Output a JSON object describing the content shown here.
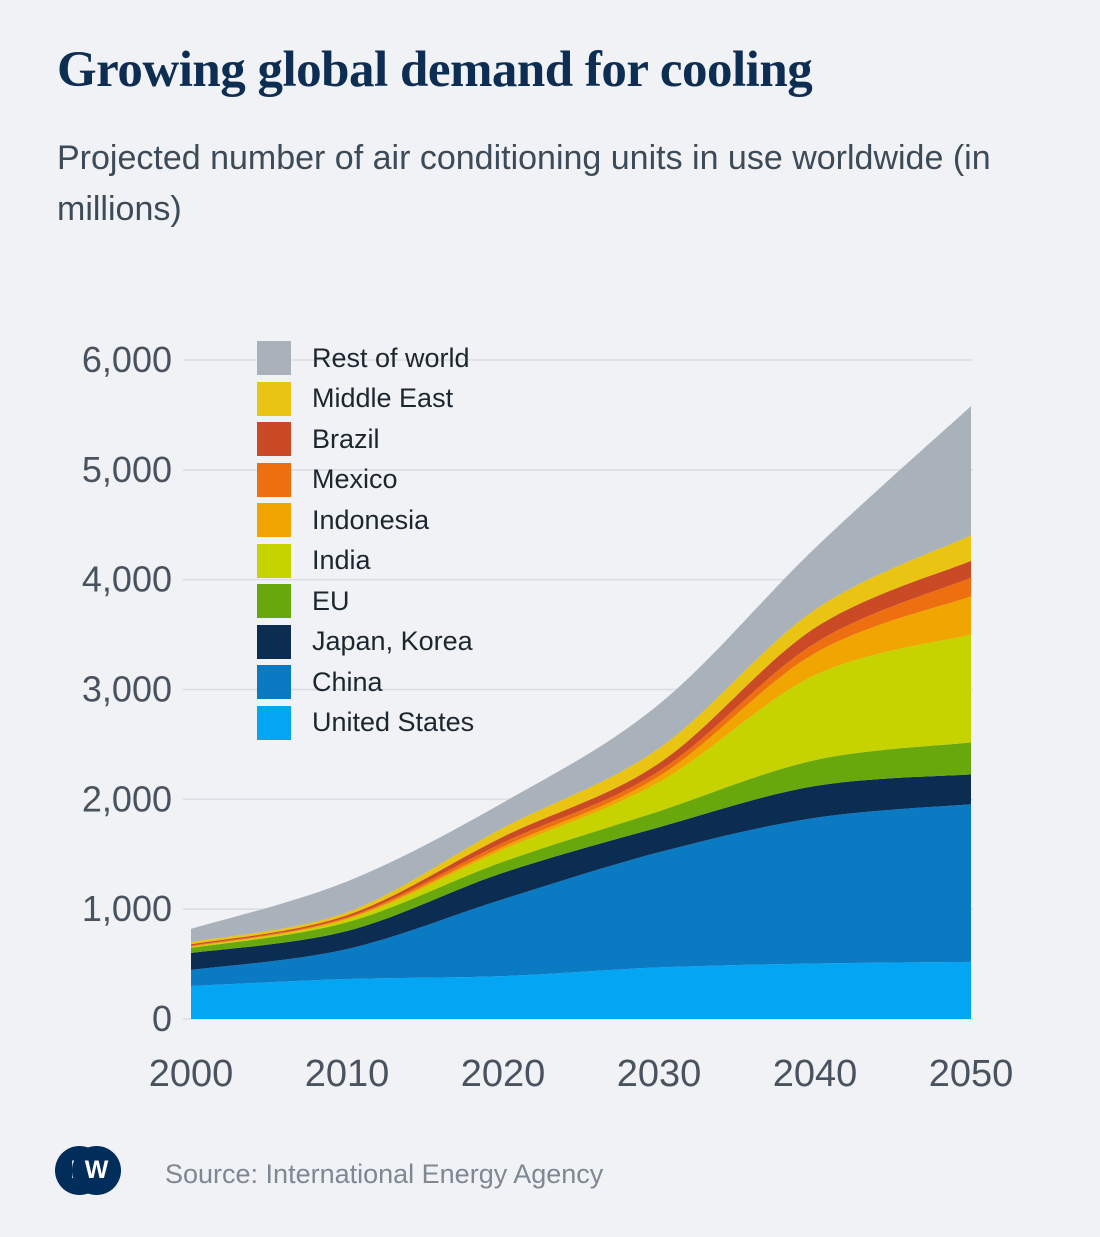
{
  "header": {
    "title": "Growing global demand for cooling",
    "subtitle": "Projected number of air conditioning units in use worldwide (in millions)"
  },
  "footer": {
    "logo_text_d": "D",
    "logo_text_w": "W",
    "source": "Source: International Energy Agency"
  },
  "colors": {
    "background": "#f0f2f5",
    "title_text": "#0d2d52",
    "subtitle_text": "#3d4a57",
    "axis_text": "#49535f",
    "legend_text": "#1c262f",
    "gridline": "#d9dde1",
    "source_text": "#7e8893",
    "logo": "#002d5a"
  },
  "chart_data": {
    "type": "area",
    "stacked": true,
    "title": "Projected number of air conditioning units in use worldwide (in millions)",
    "x": [
      2000,
      2010,
      2020,
      2030,
      2040,
      2050
    ],
    "xlabel": "",
    "ylabel": "",
    "ylim": [
      0,
      6000
    ],
    "xlim": [
      2000,
      2050
    ],
    "grid": true,
    "legend_position": "top-left-overlay",
    "ytick_values": [
      0,
      1000,
      2000,
      3000,
      4000,
      5000,
      6000
    ],
    "ytick_labels": [
      "0",
      "1,000",
      "2,000",
      "3,000",
      "4,000",
      "5,000",
      "6,000"
    ],
    "xtick_labels": [
      "2000",
      "2010",
      "2020",
      "2030",
      "2040",
      "2050"
    ],
    "series": [
      {
        "name": "United States",
        "color": "#04a6f4",
        "values": [
          300,
          364,
          391,
          470,
          505,
          520
        ]
      },
      {
        "name": "China",
        "color": "#0a7ac2",
        "values": [
          146,
          272,
          700,
          1048,
          1326,
          1435
        ]
      },
      {
        "name": "Japan, Korea",
        "color": "#0c2d52",
        "values": [
          155,
          165,
          240,
          228,
          290,
          272
        ]
      },
      {
        "name": "EU",
        "color": "#69a80c",
        "values": [
          46,
          80,
          100,
          146,
          236,
          291
        ]
      },
      {
        "name": "India",
        "color": "#c6d300",
        "values": [
          8,
          25,
          110,
          264,
          774,
          982
        ]
      },
      {
        "name": "Indonesia",
        "color": "#f0a500",
        "values": [
          5,
          10,
          28,
          54,
          200,
          348
        ]
      },
      {
        "name": "Mexico",
        "color": "#ed6f0f",
        "values": [
          8,
          10,
          36,
          46,
          91,
          170
        ]
      },
      {
        "name": "Brazil",
        "color": "#cb4a26",
        "values": [
          12,
          18,
          55,
          72,
          140,
          155
        ]
      },
      {
        "name": "Middle East",
        "color": "#e9c413",
        "values": [
          22,
          28,
          80,
          137,
          165,
          230
        ]
      },
      {
        "name": "Rest of world",
        "color": "#a9b1ba",
        "values": [
          118,
          280,
          230,
          400,
          560,
          1177
        ]
      }
    ],
    "legend_order_top_to_bottom": [
      "Rest of world",
      "Middle East",
      "Brazil",
      "Mexico",
      "Indonesia",
      "India",
      "EU",
      "Japan, Korea",
      "China",
      "United States"
    ]
  }
}
